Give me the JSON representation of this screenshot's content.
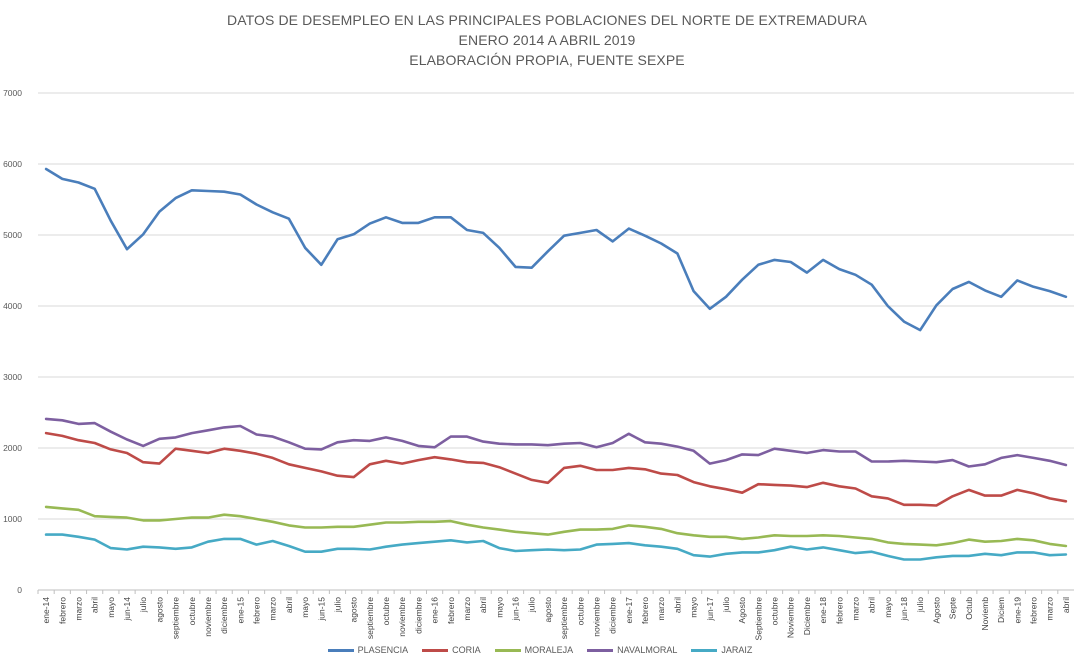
{
  "chart_data": {
    "type": "line",
    "title_lines": [
      "DATOS DE DESEMPLEO EN LAS PRINCIPALES POBLACIONES DEL NORTE DE EXTREMADURA",
      "ENERO 2014 A  ABRIL 2019",
      "ELABORACIÓN PROPIA, FUENTE SEXPE"
    ],
    "ylim": [
      0,
      7000
    ],
    "yticks": [
      "0",
      "1000",
      "2000",
      "3000",
      "4000",
      "5000",
      "6000",
      "7000"
    ],
    "grid": true,
    "legend_position": "bottom",
    "categories": [
      "ene-14",
      "febrero",
      "marzo",
      "abril",
      "mayo",
      "jun-14",
      "julio",
      "agosto",
      "septiembre",
      "octubre",
      "noviembre",
      "diciembre",
      "ene-15",
      "febrero",
      "marzo",
      "abril",
      "mayo",
      "jun-15",
      "julio",
      "agosto",
      "septiembre",
      "octubre",
      "noviembre",
      "diciembre",
      "ene-16",
      "febrero",
      "marzo",
      "abril",
      "mayo",
      "jun-16",
      "julio",
      "agosto",
      "septiembre",
      "octubre",
      "noviembre",
      "diciembre",
      "ene-17",
      "febrero",
      "marzo",
      "abril",
      "mayo",
      "jun-17",
      "julio",
      "Agosto",
      "Septiembre",
      "octubre",
      "Noviembre",
      "Diciembre",
      "ene-18",
      "febrero",
      "marzo",
      "abril",
      "mayo",
      "jun-18",
      "julio",
      "Agosto",
      "Septe",
      "Octub",
      "Noviemb",
      "Diciem",
      "ene-19",
      "febrero",
      "marzo",
      "abril"
    ],
    "series": [
      {
        "name": "PLASENCIA",
        "color": "#4A7EBB",
        "values": [
          5930,
          5790,
          5740,
          5650,
          5200,
          4800,
          5010,
          5330,
          5520,
          5630,
          5620,
          5610,
          5570,
          5430,
          5320,
          5230,
          4820,
          4580,
          4940,
          5010,
          5160,
          5250,
          5170,
          5170,
          5250,
          5250,
          5070,
          5030,
          4820,
          4550,
          4540,
          4770,
          4990,
          5030,
          5070,
          4910,
          5090,
          4990,
          4880,
          4740,
          4210,
          3960,
          4130,
          4370,
          4580,
          4650,
          4620,
          4470,
          4650,
          4520,
          4440,
          4300,
          4000,
          3780,
          3660,
          4010,
          4240,
          4340,
          4220,
          4130,
          4360,
          4270,
          4210,
          4130
        ]
      },
      {
        "name": "CORIA",
        "color": "#BE4B48",
        "values": [
          2210,
          2170,
          2110,
          2070,
          1980,
          1930,
          1800,
          1780,
          1990,
          1960,
          1930,
          1990,
          1960,
          1920,
          1860,
          1770,
          1720,
          1670,
          1610,
          1590,
          1770,
          1820,
          1780,
          1830,
          1870,
          1840,
          1800,
          1790,
          1730,
          1640,
          1550,
          1510,
          1720,
          1750,
          1690,
          1690,
          1720,
          1700,
          1640,
          1620,
          1520,
          1460,
          1420,
          1370,
          1490,
          1480,
          1470,
          1450,
          1510,
          1460,
          1430,
          1320,
          1290,
          1200,
          1200,
          1190,
          1320,
          1410,
          1330,
          1330,
          1410,
          1360,
          1290,
          1250
        ]
      },
      {
        "name": "MORALEJA",
        "color": "#98B954",
        "values": [
          1170,
          1150,
          1130,
          1040,
          1030,
          1020,
          980,
          980,
          1000,
          1020,
          1020,
          1060,
          1040,
          1000,
          960,
          910,
          880,
          880,
          890,
          890,
          920,
          950,
          950,
          960,
          960,
          970,
          920,
          880,
          850,
          820,
          800,
          780,
          820,
          850,
          850,
          860,
          910,
          890,
          860,
          800,
          770,
          750,
          750,
          720,
          740,
          770,
          760,
          760,
          770,
          760,
          740,
          720,
          670,
          650,
          640,
          630,
          660,
          710,
          680,
          690,
          720,
          700,
          650,
          620
        ]
      },
      {
        "name": "NAVALMORAL",
        "color": "#7D5FA0",
        "values": [
          2410,
          2390,
          2340,
          2350,
          2230,
          2120,
          2030,
          2130,
          2150,
          2210,
          2250,
          2290,
          2310,
          2190,
          2160,
          2080,
          1990,
          1980,
          2080,
          2110,
          2100,
          2150,
          2100,
          2030,
          2010,
          2160,
          2160,
          2090,
          2060,
          2050,
          2050,
          2040,
          2060,
          2070,
          2010,
          2070,
          2200,
          2080,
          2060,
          2020,
          1960,
          1780,
          1830,
          1910,
          1900,
          1990,
          1960,
          1930,
          1970,
          1950,
          1950,
          1810,
          1810,
          1820,
          1810,
          1800,
          1830,
          1740,
          1770,
          1860,
          1900,
          1860,
          1820,
          1760
        ]
      },
      {
        "name": "JARAIZ",
        "color": "#46AAC5",
        "values": [
          780,
          780,
          750,
          710,
          590,
          570,
          610,
          600,
          580,
          600,
          680,
          720,
          720,
          640,
          690,
          620,
          540,
          540,
          580,
          580,
          570,
          610,
          640,
          660,
          680,
          700,
          670,
          690,
          590,
          550,
          560,
          570,
          560,
          570,
          640,
          650,
          660,
          630,
          610,
          580,
          490,
          470,
          510,
          530,
          530,
          560,
          610,
          570,
          600,
          560,
          520,
          540,
          480,
          430,
          430,
          460,
          480,
          480,
          510,
          490,
          530,
          530,
          490,
          500
        ]
      }
    ]
  }
}
